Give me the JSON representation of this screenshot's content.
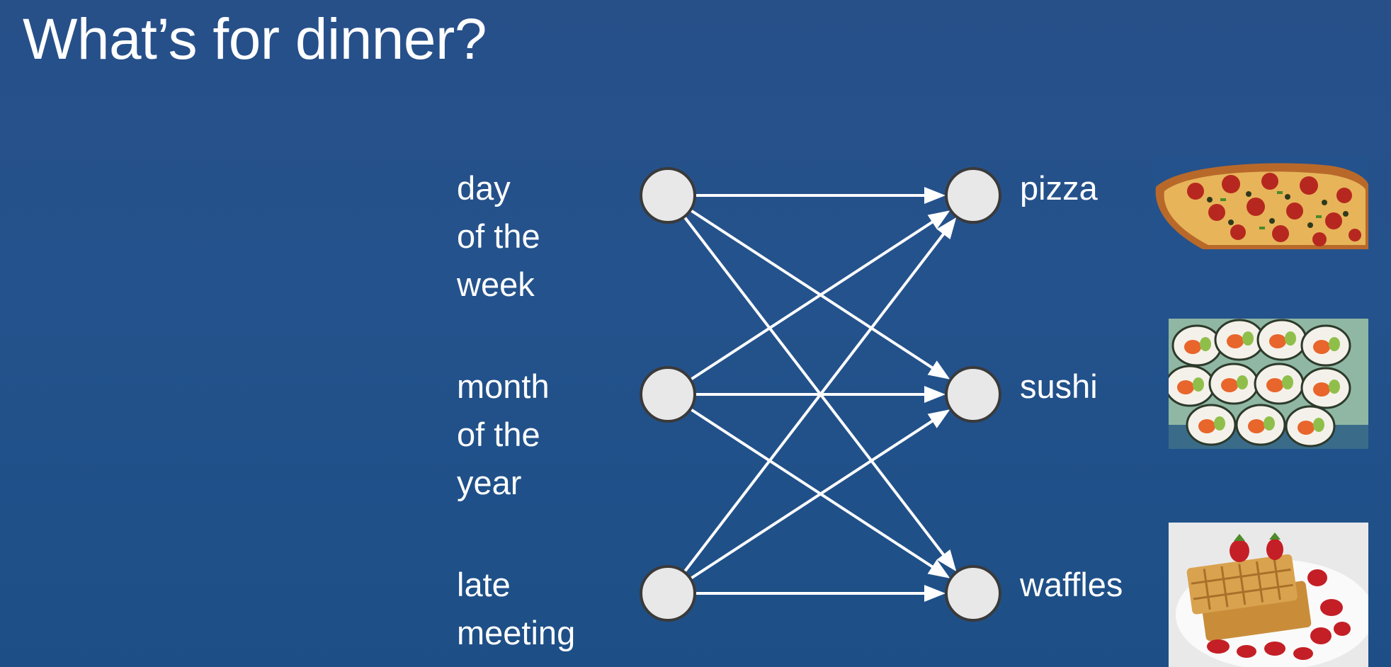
{
  "slide": {
    "title": "What’s for dinner?"
  },
  "inputs": [
    {
      "lines": [
        "day",
        "of the",
        "week"
      ]
    },
    {
      "lines": [
        "month",
        "of the",
        "year"
      ]
    },
    {
      "lines": [
        "late",
        "meeting"
      ]
    }
  ],
  "outputs": [
    {
      "label": "pizza",
      "image": "pizza-photo"
    },
    {
      "label": "sushi",
      "image": "sushi-photo"
    },
    {
      "label": "waffles",
      "image": "waffles-photo"
    }
  ],
  "connections": "fully-connected",
  "colors": {
    "background": "#24528c",
    "text": "#ffffff",
    "node_fill": "#e8e8e8",
    "node_stroke": "#3a3a3a",
    "edge": "#ffffff"
  }
}
